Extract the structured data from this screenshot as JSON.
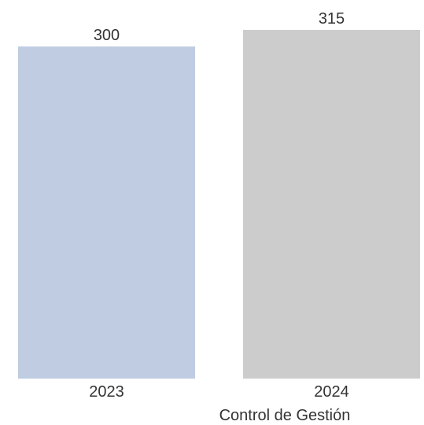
{
  "chart_data": {
    "type": "bar",
    "categories": [
      "2023",
      "2024"
    ],
    "values": [
      300,
      315
    ],
    "data_labels": [
      "300",
      "315"
    ],
    "bar_colors": [
      "#bfcce2",
      "#cccccc"
    ],
    "title": "",
    "xlabel": "Control de Gestión",
    "ylabel": "",
    "ylim": [
      0,
      315
    ],
    "grid": false,
    "legend": "none"
  }
}
